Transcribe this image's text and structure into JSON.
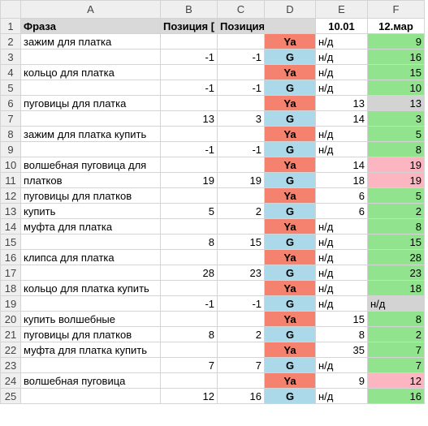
{
  "columns": [
    "A",
    "B",
    "C",
    "D",
    "E",
    "F"
  ],
  "header_fill": "#d9d9d9",
  "d_colors": {
    "Ya": "#f4826e",
    "G": "#acd9ea"
  },
  "rows": [
    {
      "n": 1,
      "cells": [
        "Фраза",
        "Позиция [",
        "Позиция [G]",
        null,
        "10.01",
        "12.мар"
      ]
    },
    {
      "n": 2,
      "cells": [
        "зажим для платка",
        null,
        null,
        "Ya",
        "н/д",
        9
      ],
      "f_color": "#92e38e"
    },
    {
      "n": 3,
      "cells": [
        null,
        -1,
        -1,
        "G",
        "н/д",
        16
      ],
      "f_color": "#92e38e"
    },
    {
      "n": 4,
      "cells": [
        "кольцо для платка",
        null,
        null,
        "Ya",
        "н/д",
        15
      ],
      "f_color": "#92e38e"
    },
    {
      "n": 5,
      "cells": [
        null,
        -1,
        -1,
        "G",
        "н/д",
        10
      ],
      "f_color": "#92e38e"
    },
    {
      "n": 6,
      "cells": [
        "пуговицы для платка",
        null,
        null,
        "Ya",
        13,
        13
      ],
      "f_color": "#d3d3d3"
    },
    {
      "n": 7,
      "cells": [
        null,
        13,
        3,
        "G",
        14,
        3
      ],
      "f_color": "#92e38e"
    },
    {
      "n": 8,
      "cells": [
        "зажим для платка купить",
        null,
        null,
        "Ya",
        "н/д",
        5
      ],
      "f_color": "#92e38e"
    },
    {
      "n": 9,
      "cells": [
        null,
        -1,
        -1,
        "G",
        "н/д",
        8
      ],
      "f_color": "#92e38e"
    },
    {
      "n": 10,
      "cells": [
        "волшебная пуговица для",
        null,
        null,
        "Ya",
        14,
        19
      ],
      "f_color": "#fbb6c1"
    },
    {
      "n": 11,
      "cells": [
        "платков",
        19,
        19,
        "G",
        18,
        19
      ],
      "f_color": "#fbb6c1"
    },
    {
      "n": 12,
      "cells": [
        "пуговицы для платков",
        null,
        null,
        "Ya",
        6,
        5
      ],
      "f_color": "#92e38e"
    },
    {
      "n": 13,
      "cells": [
        "купить",
        5,
        2,
        "G",
        6,
        2
      ],
      "f_color": "#92e38e"
    },
    {
      "n": 14,
      "cells": [
        "муфта для платка",
        null,
        null,
        "Ya",
        "н/д",
        8
      ],
      "f_color": "#92e38e"
    },
    {
      "n": 15,
      "cells": [
        null,
        8,
        15,
        "G",
        "н/д",
        15
      ],
      "f_color": "#92e38e"
    },
    {
      "n": 16,
      "cells": [
        "клипса для платка",
        null,
        null,
        "Ya",
        "н/д",
        28
      ],
      "f_color": "#92e38e"
    },
    {
      "n": 17,
      "cells": [
        null,
        28,
        23,
        "G",
        "н/д",
        23
      ],
      "f_color": "#92e38e"
    },
    {
      "n": 18,
      "cells": [
        "кольцо для платка купить",
        null,
        null,
        "Ya",
        "н/д",
        18
      ],
      "f_color": "#92e38e"
    },
    {
      "n": 19,
      "cells": [
        null,
        -1,
        -1,
        "G",
        "н/д",
        "н/д"
      ],
      "f_color": "#d3d3d3"
    },
    {
      "n": 20,
      "cells": [
        "купить волшебные",
        null,
        null,
        "Ya",
        15,
        8
      ],
      "f_color": "#92e38e"
    },
    {
      "n": 21,
      "cells": [
        "пуговицы для платков",
        8,
        2,
        "G",
        8,
        2
      ],
      "f_color": "#92e38e"
    },
    {
      "n": 22,
      "cells": [
        "муфта для платка купить",
        null,
        null,
        "Ya",
        35,
        7
      ],
      "f_color": "#92e38e"
    },
    {
      "n": 23,
      "cells": [
        null,
        7,
        7,
        "G",
        "н/д",
        7
      ],
      "f_color": "#92e38e"
    },
    {
      "n": 24,
      "cells": [
        "волшебная пуговица",
        null,
        null,
        "Ya",
        9,
        12
      ],
      "f_color": "#fbb6c1"
    },
    {
      "n": 25,
      "cells": [
        null,
        12,
        16,
        "G",
        "н/д",
        16
      ],
      "f_color": "#92e38e"
    }
  ]
}
